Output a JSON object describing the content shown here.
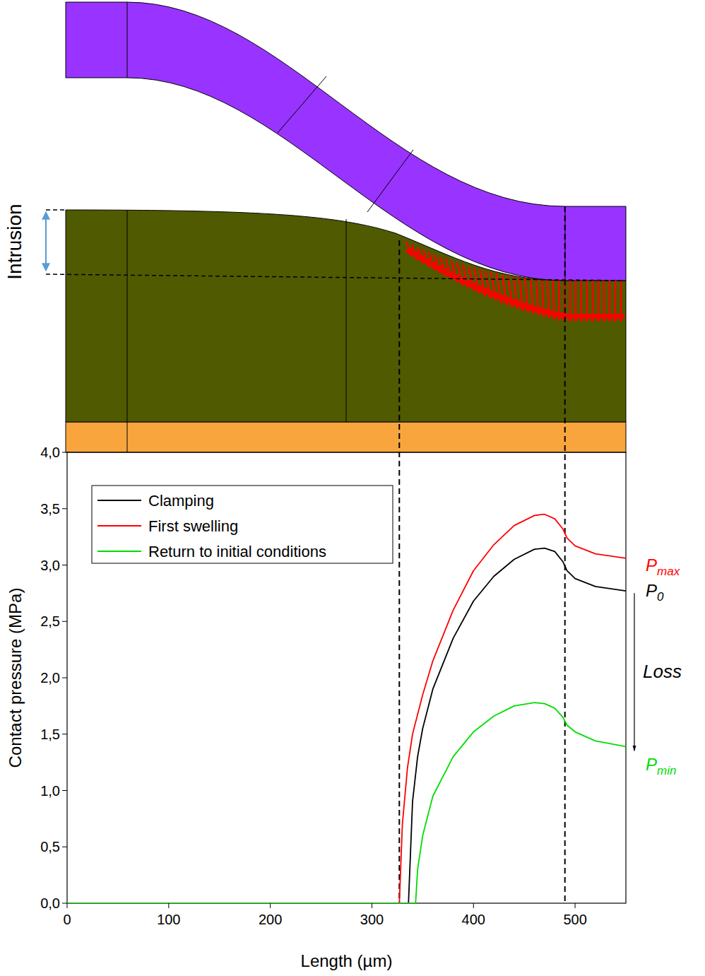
{
  "chart_data": {
    "type": "line",
    "xlabel": "Length (µm)",
    "ylabel": "Contact pressure (MPa)",
    "xlim": [
      0,
      550
    ],
    "ylim": [
      0,
      4
    ],
    "xticks": [
      0,
      100,
      200,
      300,
      400,
      500
    ],
    "yticks": [
      {
        "value": 0,
        "label": "0,0"
      },
      {
        "value": 0.5,
        "label": "0,5"
      },
      {
        "value": 1,
        "label": "1,0"
      },
      {
        "value": 1.5,
        "label": "1,5"
      },
      {
        "value": 2,
        "label": "2,0"
      },
      {
        "value": 2.5,
        "label": "2,5"
      },
      {
        "value": 3,
        "label": "3,0"
      },
      {
        "value": 3.5,
        "label": "3,5"
      },
      {
        "value": 4,
        "label": "4,0"
      }
    ],
    "legend": "upper left",
    "series": [
      {
        "name": "Clamping",
        "color": "#000000",
        "x": [
          0,
          336,
          340,
          345,
          350,
          360,
          380,
          400,
          420,
          440,
          460,
          470,
          480,
          488,
          492,
          500,
          520,
          550
        ],
        "values": [
          0,
          0,
          0.9,
          1.3,
          1.55,
          1.9,
          2.35,
          2.68,
          2.9,
          3.05,
          3.14,
          3.15,
          3.12,
          3.03,
          2.95,
          2.88,
          2.81,
          2.77
        ]
      },
      {
        "name": "First swelling",
        "color": "#ff0000",
        "x": [
          0,
          327,
          330,
          335,
          340,
          350,
          360,
          380,
          400,
          420,
          440,
          460,
          470,
          480,
          488,
          492,
          500,
          520,
          550
        ],
        "values": [
          0,
          0,
          0.7,
          1.2,
          1.5,
          1.85,
          2.15,
          2.6,
          2.95,
          3.18,
          3.35,
          3.44,
          3.45,
          3.41,
          3.32,
          3.24,
          3.17,
          3.1,
          3.06
        ]
      },
      {
        "name": "Return to initial conditions",
        "color": "#00dd00",
        "x": [
          0,
          343,
          345,
          350,
          360,
          380,
          400,
          420,
          440,
          460,
          470,
          480,
          488,
          492,
          500,
          520,
          550
        ],
        "values": [
          0,
          0,
          0.3,
          0.6,
          0.95,
          1.3,
          1.52,
          1.66,
          1.75,
          1.78,
          1.77,
          1.73,
          1.65,
          1.58,
          1.52,
          1.44,
          1.39
        ]
      }
    ],
    "vlines": [
      327,
      490
    ],
    "annotations": [
      {
        "text": "P",
        "subscript": "max",
        "series": 1
      },
      {
        "text": "P",
        "subscript": "0",
        "series": 0
      },
      {
        "text": "P",
        "subscript": "min",
        "series": 2
      },
      {
        "text": "Loss",
        "from_series": 0,
        "to_series": 2
      }
    ]
  },
  "diagram": {
    "label": "Intrusion"
  }
}
